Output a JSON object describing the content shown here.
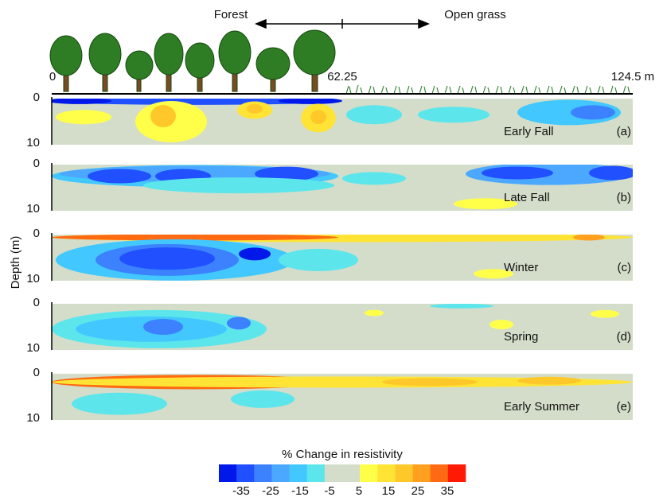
{
  "header": {
    "forest": "Forest",
    "grass": "Open grass",
    "start": "0",
    "middle": "62.25",
    "end": "124.5 m"
  },
  "y_label": "Depth (m)",
  "depth_ticks": [
    "0",
    "10"
  ],
  "panels": [
    {
      "label": "Early Fall",
      "letter": "(a)"
    },
    {
      "label": "Late Fall",
      "letter": "(b)"
    },
    {
      "label": "Winter",
      "letter": "(c)"
    },
    {
      "label": "Spring",
      "letter": "(d)"
    },
    {
      "label": "Early Summer",
      "letter": "(e)"
    }
  ],
  "colorbar": {
    "title": "% Change in resistivity",
    "ticks": [
      "-35",
      "-25",
      "-15",
      "-5",
      "5",
      "15",
      "25",
      "35"
    ],
    "colors": [
      "#0018ea",
      "#2050ff",
      "#3c82ff",
      "#4ca8ff",
      "#42c8ff",
      "#5ce6ec",
      "#d3ddc9",
      "#d3ddc9",
      "#ffff4a",
      "#ffe436",
      "#ffc82a",
      "#ffa01e",
      "#ff6a12",
      "#ff1a06"
    ]
  }
}
